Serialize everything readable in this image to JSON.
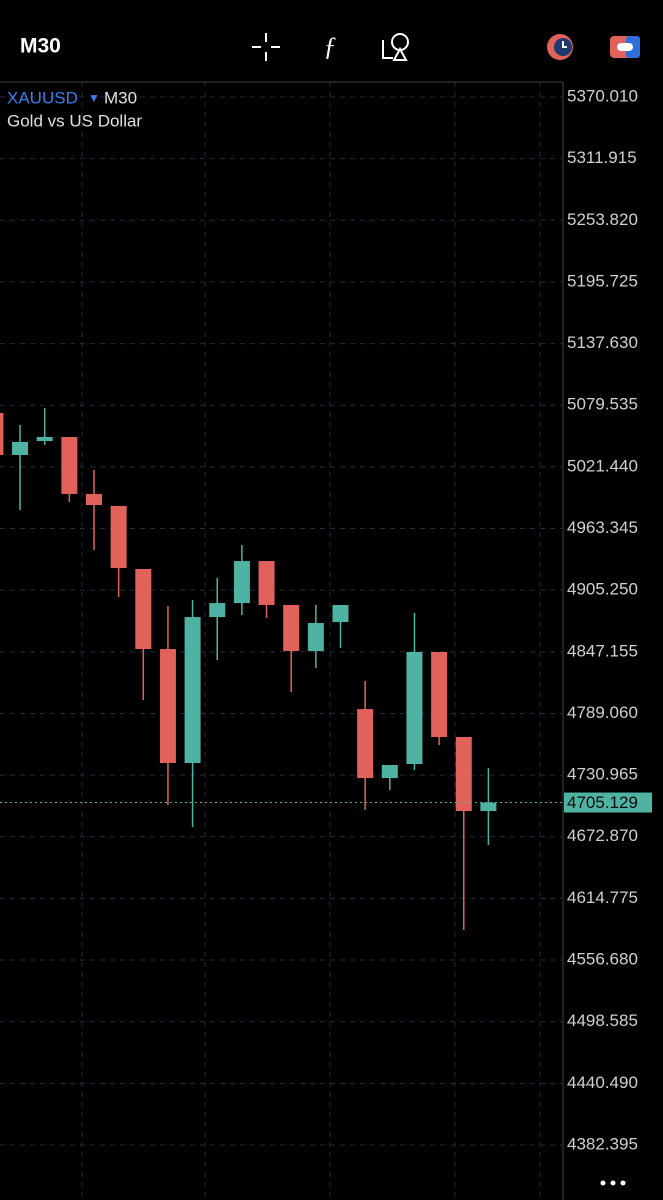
{
  "header": {
    "timeframe": "M30"
  },
  "chart_data": {
    "type": "candlestick",
    "symbol": "XAUUSD",
    "timeframe": "M30",
    "description": "Gold vs US Dollar",
    "open": [
      5072.2,
      5032.6,
      5045.8,
      5049.6,
      4995.9,
      4984.6,
      4925.2,
      4849.8,
      4742.4,
      4879.9,
      4893.1,
      4932.7,
      4891.3,
      4847.9,
      4875.2,
      4793.2,
      4728.2,
      4741.4,
      4847.0,
      4766.9,
      4697.1
    ],
    "high": [
      5074.0,
      5060.9,
      5076.9,
      5049.6,
      5018.5,
      4984.6,
      4925.2,
      4890.3,
      4896.0,
      4916.7,
      4947.8,
      4932.7,
      4891.3,
      4891.3,
      4891.3,
      4819.6,
      4740.5,
      4883.7,
      4847.0,
      4766.9,
      4737.6
    ],
    "low": [
      5030.0,
      4980.8,
      5042.0,
      4988.3,
      4943.1,
      4898.8,
      4801.7,
      4702.8,
      4682.0,
      4839.4,
      4881.8,
      4879.0,
      4809.3,
      4831.9,
      4850.7,
      4698.1,
      4716.9,
      4735.7,
      4759.3,
      4585.0,
      4665.1
    ],
    "close": [
      5032.6,
      5044.9,
      5049.6,
      4995.9,
      4985.5,
      4926.1,
      4849.8,
      4742.4,
      4879.9,
      4893.1,
      4932.7,
      4891.3,
      4847.9,
      4874.3,
      4891.3,
      4728.2,
      4740.5,
      4847.0,
      4766.9,
      4697.1,
      4705.129
    ],
    "up_color": "#4fb3a3",
    "down_color": "#e0625a",
    "current_price": 4705.129,
    "ylim": [
      4344.7,
      5384.14
    ],
    "yticks": [
      {
        "value": 5370.01,
        "label": "5370.010"
      },
      {
        "value": 5311.915,
        "label": "5311.915"
      },
      {
        "value": 5253.82,
        "label": "5253.820"
      },
      {
        "value": 5195.725,
        "label": "5195.725"
      },
      {
        "value": 5137.63,
        "label": "5137.630"
      },
      {
        "value": 5079.535,
        "label": "5079.535"
      },
      {
        "value": 5021.44,
        "label": "5021.440"
      },
      {
        "value": 4963.345,
        "label": "4963.345"
      },
      {
        "value": 4905.25,
        "label": "4905.250"
      },
      {
        "value": 4847.155,
        "label": "4847.155"
      },
      {
        "value": 4789.06,
        "label": "4789.060"
      },
      {
        "value": 4730.965,
        "label": "4730.965"
      },
      {
        "value": 4672.87,
        "label": "4672.870"
      },
      {
        "value": 4614.775,
        "label": "4614.775"
      },
      {
        "value": 4556.68,
        "label": "4556.680"
      },
      {
        "value": 4498.585,
        "label": "4498.585"
      },
      {
        "value": 4440.49,
        "label": "4440.490"
      },
      {
        "value": 4382.395,
        "label": "4382.395"
      }
    ],
    "grid": true
  }
}
